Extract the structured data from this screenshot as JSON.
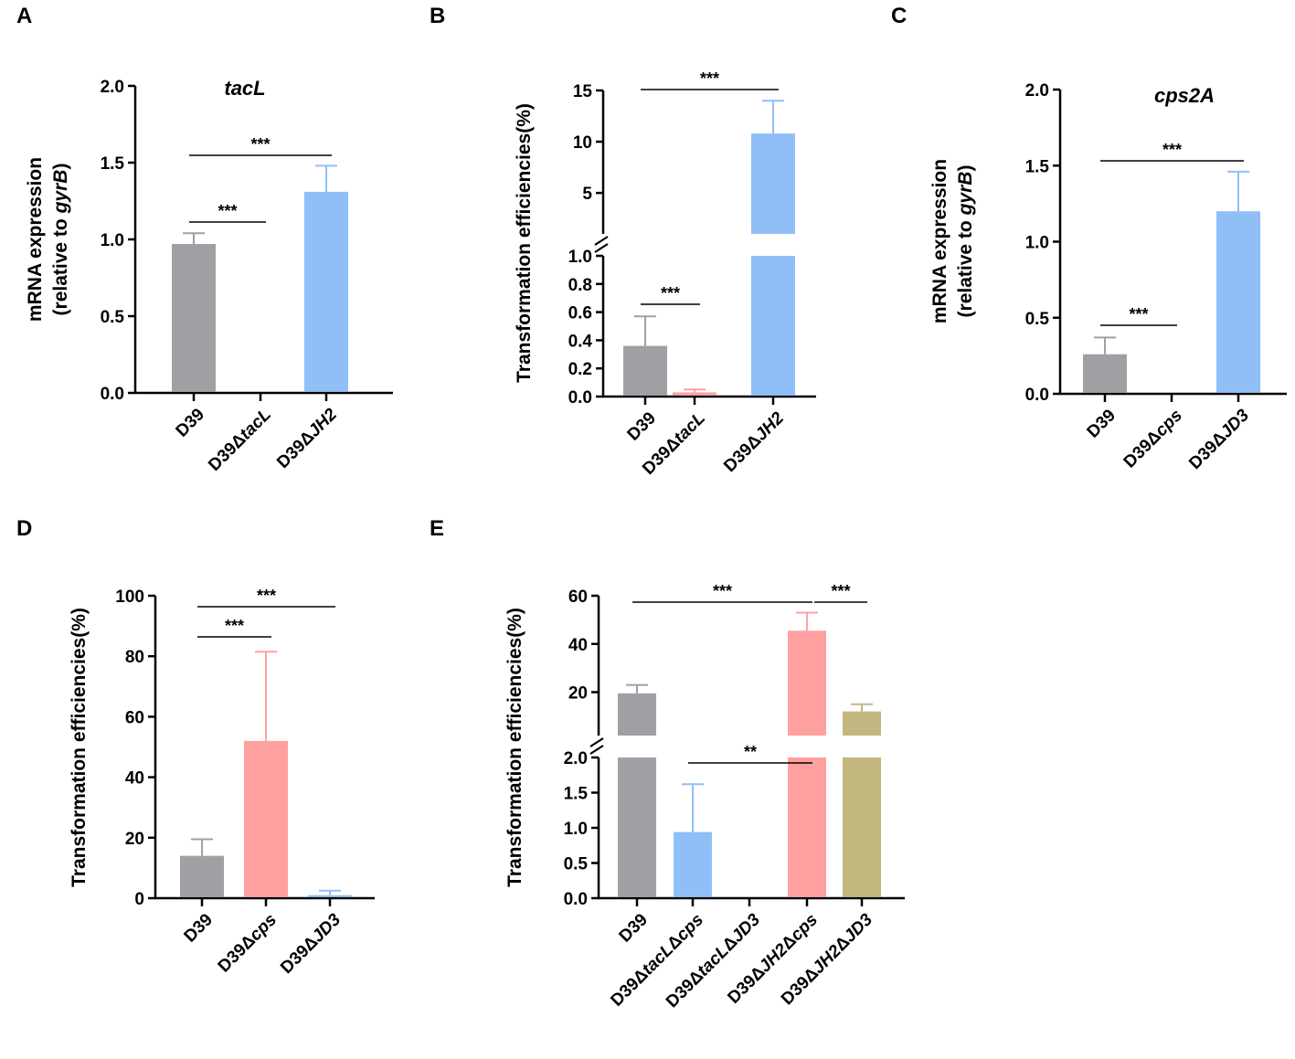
{
  "chart_data": [
    {
      "panel": "A",
      "type": "bar",
      "title": "tacL",
      "ylabel": "mRNA expression (relative to gyrB)",
      "ylabel_lines": [
        "mRNA expression",
        "(relative to ",
        "gyrB",
        ")"
      ],
      "ylim": [
        0,
        2.0
      ],
      "yticks": [
        "0.0",
        "0.5",
        "1.0",
        "1.5",
        "2.0"
      ],
      "categories": [
        {
          "pre": "D39",
          "it": "",
          "post": ""
        },
        {
          "pre": "D39Δ",
          "it": "tacL",
          "post": ""
        },
        {
          "pre": "D39Δ",
          "it": "JH2",
          "post": ""
        }
      ],
      "values": [
        0.97,
        0,
        1.31
      ],
      "errors": [
        0.07,
        0,
        0.17
      ],
      "colors": [
        "#a0a0a4",
        "#ffa0a0",
        "#90bff7"
      ],
      "significance": [
        {
          "from": 0,
          "to": 1,
          "label": "***"
        },
        {
          "from": 0,
          "to": 2,
          "label": "***"
        }
      ]
    },
    {
      "panel": "B",
      "type": "bar",
      "title": "",
      "ylabel": "Transformation efficiencies(%)",
      "ylim": [
        0,
        15
      ],
      "axis_break": {
        "lower": [
          0,
          1.0
        ],
        "upper": [
          1.0,
          15
        ]
      },
      "yticks_lower": [
        "0.0",
        "0.2",
        "0.4",
        "0.6",
        "0.8",
        "1.0"
      ],
      "yticks_upper": [
        "5",
        "10",
        "15"
      ],
      "categories": [
        {
          "pre": "D39",
          "it": "",
          "post": ""
        },
        {
          "pre": "D39Δ",
          "it": "tacL",
          "post": ""
        },
        {
          "pre": "D39Δ",
          "it": "JH2",
          "post": ""
        }
      ],
      "values": [
        0.36,
        0.03,
        10.8
      ],
      "errors": [
        0.21,
        0.02,
        3.2
      ],
      "colors": [
        "#a0a0a4",
        "#ffa0a0",
        "#90bff7"
      ],
      "significance": [
        {
          "from": 0,
          "to": 1,
          "label": "***"
        },
        {
          "from": 0,
          "to": 2,
          "label": "***"
        }
      ]
    },
    {
      "panel": "C",
      "type": "bar",
      "title": "cps2A",
      "ylabel": "mRNA expression (relative to gyrB)",
      "ylabel_lines": [
        "mRNA expression",
        "(relative to ",
        "gyrB",
        ")"
      ],
      "ylim": [
        0,
        2.0
      ],
      "yticks": [
        "0.0",
        "0.5",
        "1.0",
        "1.5",
        "2.0"
      ],
      "categories": [
        {
          "pre": "D39",
          "it": "",
          "post": ""
        },
        {
          "pre": "D39Δ",
          "it": "cps",
          "post": ""
        },
        {
          "pre": "D39Δ",
          "it": "JD3",
          "post": ""
        }
      ],
      "values": [
        0.26,
        0,
        1.2
      ],
      "errors": [
        0.11,
        0,
        0.26
      ],
      "colors": [
        "#a0a0a4",
        "#ffa0a0",
        "#90bff7"
      ],
      "significance": [
        {
          "from": 0,
          "to": 1,
          "label": "***"
        },
        {
          "from": 0,
          "to": 2,
          "label": "***"
        }
      ]
    },
    {
      "panel": "D",
      "type": "bar",
      "title": "",
      "ylabel": "Transformation efficiencies(%)",
      "ylim": [
        0,
        100
      ],
      "yticks": [
        "0",
        "20",
        "40",
        "60",
        "80",
        "100"
      ],
      "categories": [
        {
          "pre": "D39",
          "it": "",
          "post": ""
        },
        {
          "pre": "D39Δ",
          "it": "cps",
          "post": ""
        },
        {
          "pre": "D39Δ",
          "it": "JD3",
          "post": ""
        }
      ],
      "values": [
        14,
        52,
        1
      ],
      "errors": [
        5.5,
        29.5,
        1.5
      ],
      "colors": [
        "#a0a0a4",
        "#ffa0a0",
        "#90bff7"
      ],
      "significance": [
        {
          "from": 0,
          "to": 1,
          "label": "***"
        },
        {
          "from": 0,
          "to": 2,
          "label": "***"
        }
      ]
    },
    {
      "panel": "E",
      "type": "bar",
      "title": "",
      "ylabel": "Transformation efficiencies(%)",
      "ylim": [
        0,
        60
      ],
      "axis_break": {
        "lower": [
          0,
          2.0
        ],
        "upper": [
          2.0,
          60
        ]
      },
      "yticks_lower": [
        "0.0",
        "0.5",
        "1.0",
        "1.5",
        "2.0"
      ],
      "yticks_upper": [
        "20",
        "40",
        "60"
      ],
      "categories": [
        {
          "pre": "D39",
          "it": "",
          "post": ""
        },
        {
          "pre": "D39Δ",
          "it": "tacL",
          "post": "Δcps"
        },
        {
          "pre": "D39Δ",
          "it": "tacL",
          "post": "ΔJD3"
        },
        {
          "pre": "D39Δ",
          "it": "JH2",
          "post": "Δcps"
        },
        {
          "pre": "D39Δ",
          "it": "JH2",
          "post": "ΔJD3"
        }
      ],
      "values": [
        19.5,
        0.94,
        0,
        45.5,
        12
      ],
      "errors": [
        3.5,
        0.68,
        0,
        7.5,
        3
      ],
      "colors": [
        "#a0a0a4",
        "#90bff7",
        "#90bff7",
        "#ffa0a0",
        "#c2b77e"
      ],
      "significance": [
        {
          "from": 0,
          "to": 3,
          "label": "***"
        },
        {
          "from": 3,
          "to": 4,
          "label": "***"
        },
        {
          "from": 1,
          "to": 3,
          "label": "**"
        }
      ]
    }
  ]
}
